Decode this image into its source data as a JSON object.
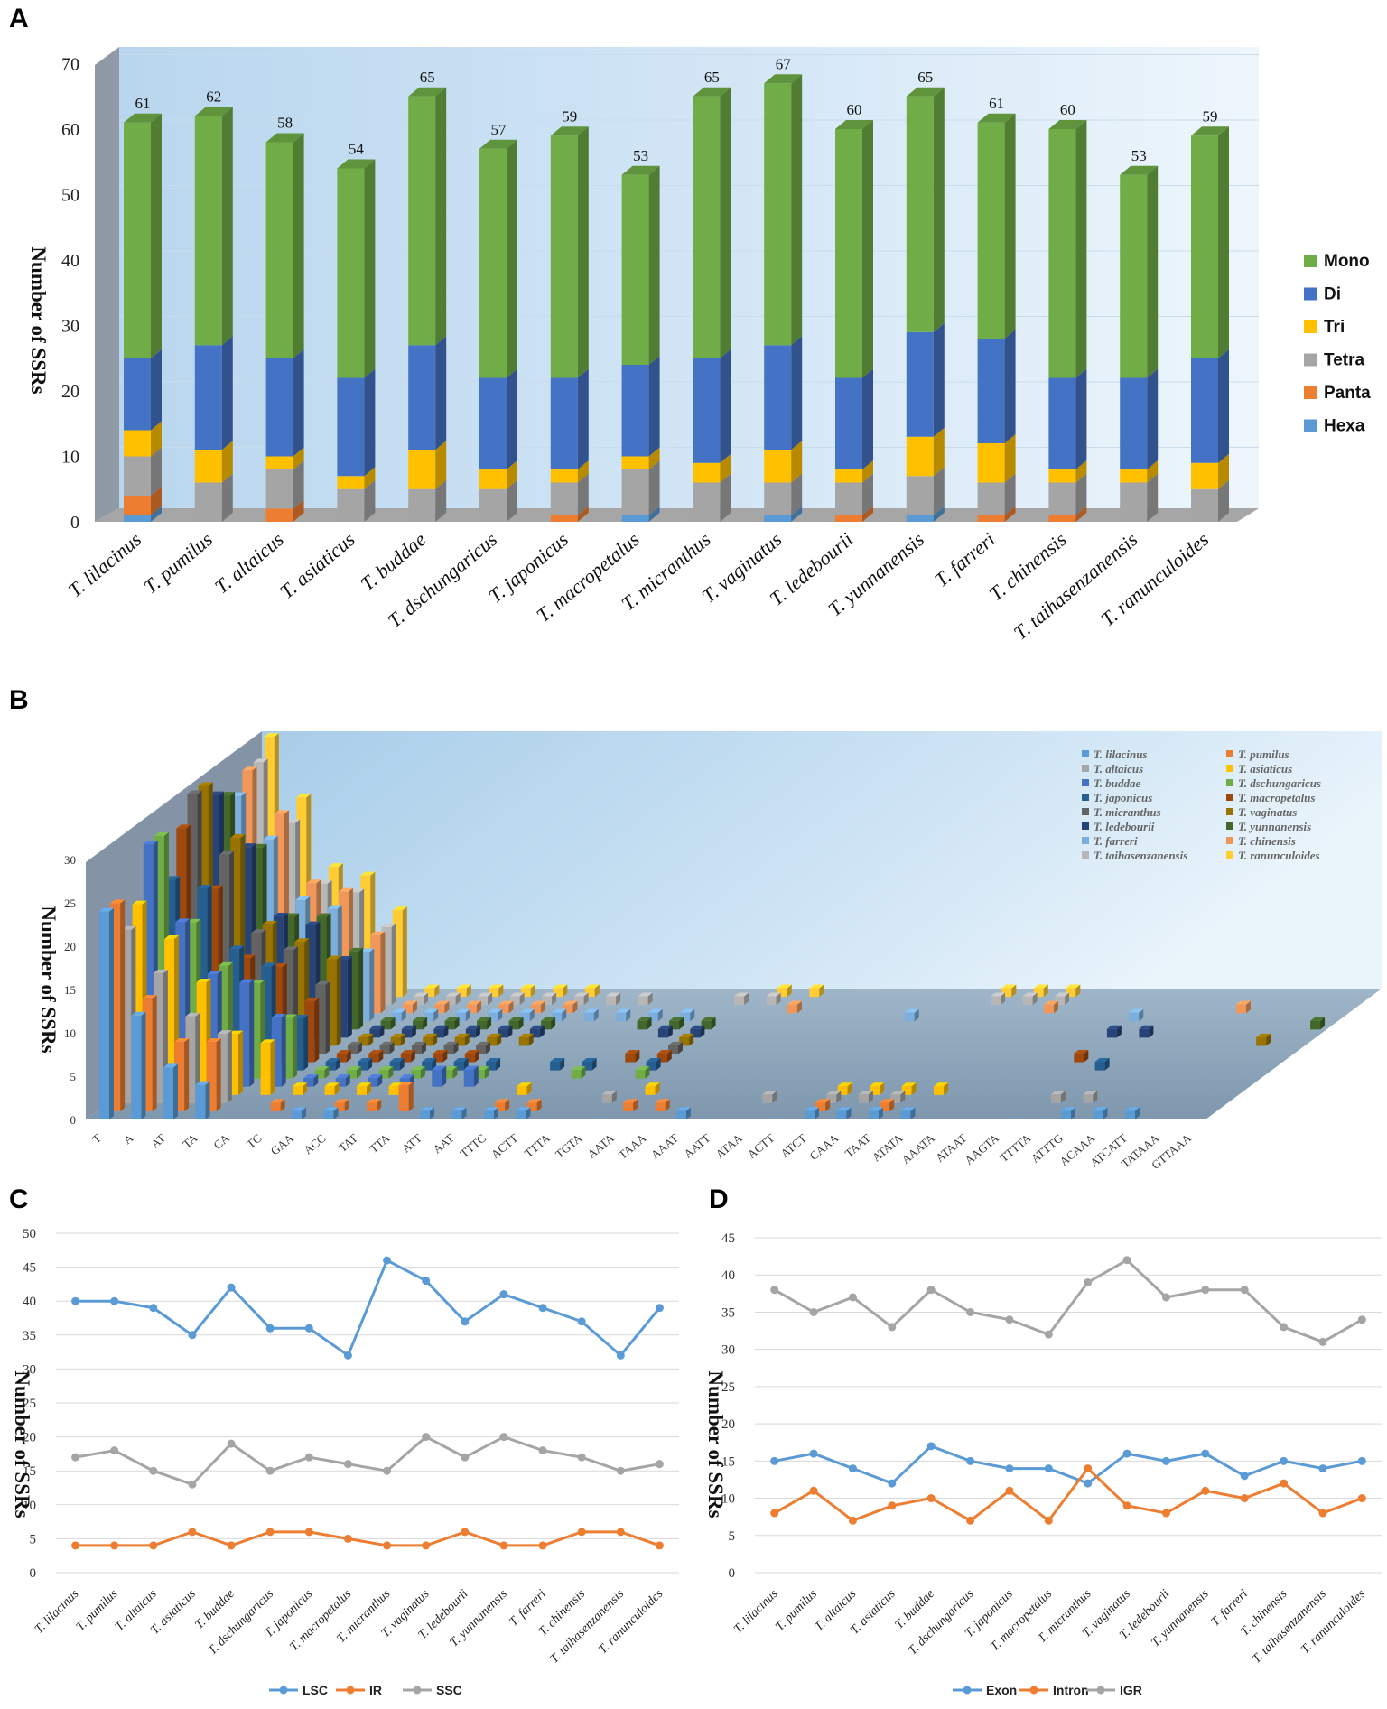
{
  "panels": {
    "a": "A",
    "b": "B",
    "c": "C",
    "d": "D"
  },
  "species": [
    "T. lilacinus",
    "T. pumilus",
    "T. altaicus",
    "T. asiaticus",
    "T. buddae",
    "T. dschungaricus",
    "T. japonicus",
    "T. macropetalus",
    "T. micranthus",
    "T. vaginatus",
    "T. ledebourii",
    "T. yunnanensis",
    "T. farreri",
    "T. chinensis",
    "T. taihasenzanensis",
    "T. ranunculoides"
  ],
  "colors": {
    "mono": "#70AD47",
    "di": "#4472C4",
    "tri": "#FFC000",
    "tetra": "#A5A5A5",
    "panta": "#ED7D31",
    "hexa": "#5B9BD5",
    "lsc": "#5B9BD5",
    "ir": "#ED7D31",
    "ssc": "#A5A5A5"
  },
  "chart_data": [
    {
      "id": "A",
      "type": "bar",
      "stacked": true,
      "ylabel": "Number of SSRs",
      "ylim": [
        0,
        70
      ],
      "yticks": [
        0,
        10,
        20,
        30,
        40,
        50,
        60,
        70
      ],
      "categories": [
        "T. lilacinus",
        "T. pumilus",
        "T. altaicus",
        "T. asiaticus",
        "T. buddae",
        "T. dschungaricus",
        "T. japonicus",
        "T. macropetalus",
        "T. micranthus",
        "T. vaginatus",
        "T. ledebourii",
        "T. yunnanensis",
        "T. farreri",
        "T. chinensis",
        "T. taihasenzanensis",
        "T. ranunculoides"
      ],
      "totals": [
        61,
        62,
        58,
        54,
        65,
        57,
        59,
        53,
        65,
        67,
        60,
        65,
        61,
        60,
        53,
        59
      ],
      "series": [
        {
          "name": "Hexa",
          "values": [
            1,
            0,
            0,
            0,
            0,
            0,
            0,
            1,
            0,
            1,
            0,
            1,
            0,
            0,
            0,
            0
          ]
        },
        {
          "name": "Panta",
          "values": [
            3,
            0,
            2,
            0,
            0,
            0,
            1,
            0,
            0,
            0,
            1,
            0,
            1,
            1,
            0,
            0
          ]
        },
        {
          "name": "Tetra",
          "values": [
            6,
            6,
            6,
            5,
            5,
            5,
            5,
            7,
            6,
            5,
            5,
            6,
            5,
            5,
            6,
            5
          ]
        },
        {
          "name": "Tri",
          "values": [
            4,
            5,
            2,
            2,
            6,
            3,
            2,
            2,
            3,
            5,
            2,
            6,
            6,
            2,
            2,
            4
          ]
        },
        {
          "name": "Di",
          "values": [
            11,
            16,
            15,
            15,
            16,
            14,
            14,
            14,
            16,
            16,
            14,
            16,
            16,
            14,
            14,
            16
          ]
        },
        {
          "name": "Mono",
          "values": [
            36,
            35,
            33,
            32,
            38,
            35,
            37,
            29,
            40,
            40,
            38,
            36,
            33,
            38,
            31,
            34
          ]
        }
      ],
      "legend": [
        "Mono",
        "Di",
        "Tri",
        "Tetra",
        "Panta",
        "Hexa"
      ],
      "legend_position": "right"
    },
    {
      "id": "B",
      "type": "bar",
      "three_d": true,
      "ylabel": "Number of SSRs",
      "ylim": [
        0,
        30
      ],
      "yticks": [
        0,
        5,
        10,
        15,
        20,
        25,
        30
      ],
      "categories": [
        "T",
        "A",
        "AT",
        "TA",
        "CA",
        "TC",
        "GAA",
        "ACC",
        "TAT",
        "TTA",
        "ATT",
        "AAT",
        "TTTC",
        "ACTT",
        "TTTA",
        "TGTA",
        "AATA",
        "TAAA",
        "AAAT",
        "AATT",
        "ATAA",
        "ACTT",
        "ATCT",
        "CAAA",
        "TAAT",
        "ATATA",
        "AAATA",
        "ATAAT",
        "AAGTA",
        "TTTTA",
        "ATTTG",
        "ACAAA",
        "ATCATT",
        "TATAAA",
        "GTTAAA"
      ],
      "series": [
        {
          "name": "T. lilacinus",
          "values": [
            24,
            12,
            6,
            4,
            0,
            0,
            1,
            1,
            0,
            0,
            1,
            1,
            1,
            1,
            0,
            0,
            0,
            0,
            1,
            0,
            0,
            0,
            1,
            1,
            1,
            1,
            0,
            0,
            0,
            0,
            1,
            1,
            1,
            0,
            0
          ]
        },
        {
          "name": "T. pumilus",
          "values": [
            24,
            13,
            8,
            8,
            0,
            1,
            0,
            1,
            1,
            3,
            0,
            0,
            1,
            1,
            0,
            0,
            1,
            1,
            0,
            0,
            0,
            0,
            1,
            0,
            1,
            0,
            0,
            0,
            0,
            0,
            0,
            0,
            0,
            0,
            0
          ]
        },
        {
          "name": "T. altaicus",
          "values": [
            20,
            15,
            10,
            8,
            0,
            0,
            0,
            0,
            0,
            0,
            0,
            0,
            0,
            0,
            0,
            1,
            0,
            0,
            0,
            0,
            1,
            0,
            1,
            1,
            1,
            0,
            0,
            0,
            0,
            1,
            1,
            0,
            0,
            0,
            0
          ]
        },
        {
          "name": "T. asiaticus",
          "values": [
            22,
            18,
            13,
            7,
            6,
            1,
            1,
            1,
            1,
            0,
            0,
            0,
            1,
            0,
            0,
            0,
            1,
            0,
            0,
            0,
            0,
            0,
            1,
            1,
            1,
            1,
            0,
            0,
            0,
            0,
            0,
            0,
            0,
            0,
            0
          ]
        },
        {
          "name": "T. buddae",
          "values": [
            28,
            19,
            13,
            12,
            8,
            1,
            1,
            1,
            1,
            2,
            2,
            0,
            0,
            0,
            0,
            0,
            0,
            0,
            0,
            0,
            0,
            0,
            0,
            0,
            0,
            0,
            0,
            0,
            0,
            0,
            0,
            0,
            0,
            0,
            0
          ]
        },
        {
          "name": "T. dschungaricus",
          "values": [
            28,
            18,
            13,
            11,
            7,
            1,
            1,
            1,
            1,
            1,
            1,
            0,
            0,
            1,
            0,
            1,
            0,
            0,
            0,
            0,
            0,
            0,
            0,
            0,
            0,
            0,
            0,
            0,
            0,
            0,
            0,
            0,
            0,
            0,
            0
          ]
        },
        {
          "name": "T. japonicus",
          "values": [
            22,
            21,
            14,
            12,
            6,
            1,
            1,
            1,
            1,
            1,
            1,
            0,
            1,
            1,
            0,
            1,
            0,
            0,
            0,
            0,
            0,
            0,
            0,
            0,
            0,
            0,
            0,
            0,
            0,
            1,
            0,
            0,
            0,
            0,
            0
          ]
        },
        {
          "name": "T. macropetalus",
          "values": [
            27,
            20,
            12,
            11,
            7,
            1,
            1,
            1,
            1,
            1,
            0,
            0,
            0,
            0,
            1,
            1,
            0,
            0,
            0,
            0,
            0,
            0,
            0,
            0,
            0,
            0,
            0,
            0,
            1,
            0,
            0,
            0,
            0,
            0,
            0
          ]
        },
        {
          "name": "T. micranthus",
          "values": [
            30,
            23,
            14,
            12,
            8,
            1,
            1,
            1,
            1,
            1,
            0,
            0,
            0,
            0,
            0,
            1,
            0,
            0,
            0,
            0,
            0,
            0,
            0,
            0,
            0,
            0,
            0,
            0,
            0,
            0,
            0,
            0,
            0,
            0,
            0
          ]
        },
        {
          "name": "T. vaginatus",
          "values": [
            30,
            24,
            14,
            12,
            10,
            1,
            1,
            1,
            1,
            1,
            1,
            0,
            0,
            0,
            0,
            1,
            0,
            0,
            0,
            0,
            0,
            0,
            0,
            0,
            0,
            0,
            0,
            0,
            0,
            0,
            0,
            0,
            0,
            1,
            0
          ]
        },
        {
          "name": "T. ledebourii",
          "values": [
            28,
            22,
            14,
            13,
            9,
            1,
            1,
            1,
            1,
            1,
            1,
            0,
            0,
            0,
            1,
            1,
            0,
            0,
            0,
            0,
            0,
            0,
            0,
            0,
            0,
            0,
            0,
            0,
            1,
            1,
            0,
            0,
            0,
            0,
            0
          ]
        },
        {
          "name": "T. yunnanensis",
          "values": [
            27,
            21,
            13,
            13,
            9,
            1,
            1,
            1,
            1,
            1,
            1,
            0,
            0,
            1,
            1,
            1,
            0,
            0,
            0,
            0,
            0,
            0,
            0,
            0,
            0,
            0,
            0,
            0,
            0,
            0,
            0,
            0,
            0,
            0,
            1
          ]
        },
        {
          "name": "T. farreri",
          "values": [
            26,
            21,
            14,
            13,
            8,
            1,
            1,
            1,
            1,
            1,
            1,
            1,
            1,
            1,
            1,
            0,
            0,
            0,
            0,
            0,
            0,
            1,
            0,
            0,
            0,
            0,
            0,
            0,
            1,
            0,
            0,
            0,
            0,
            0,
            0
          ]
        },
        {
          "name": "T. chinensis",
          "values": [
            28,
            23,
            15,
            14,
            9,
            1,
            1,
            1,
            1,
            1,
            1,
            0,
            0,
            0,
            0,
            0,
            0,
            1,
            0,
            0,
            0,
            0,
            0,
            0,
            0,
            1,
            0,
            0,
            0,
            0,
            0,
            1,
            0,
            0,
            0
          ]
        },
        {
          "name": "T. taihasenzanensis",
          "values": [
            28,
            21,
            14,
            13,
            9,
            1,
            1,
            1,
            1,
            1,
            1,
            1,
            1,
            0,
            0,
            1,
            1,
            0,
            0,
            0,
            0,
            0,
            0,
            1,
            1,
            1,
            0,
            0,
            0,
            0,
            0,
            0,
            0,
            0,
            0
          ]
        },
        {
          "name": "T. ranunculoides",
          "values": [
            30,
            23,
            15,
            14,
            10,
            1,
            1,
            1,
            1,
            1,
            1,
            0,
            0,
            0,
            0,
            0,
            1,
            1,
            0,
            0,
            0,
            0,
            0,
            1,
            1,
            1,
            0,
            0,
            0,
            0,
            0,
            0,
            0,
            0,
            0
          ]
        }
      ],
      "legend_position": "top-right"
    },
    {
      "id": "C",
      "type": "line",
      "ylabel": "Number of SSRs",
      "ylim": [
        0,
        50
      ],
      "yticks": [
        0,
        5,
        10,
        15,
        20,
        25,
        30,
        35,
        40,
        45,
        50
      ],
      "categories": [
        "T. lilacinus",
        "T. pumilus",
        "T. altaicus",
        "T. asiaticus",
        "T. buddae",
        "T. dschungaricus",
        "T. japonicus",
        "T. macropetalus",
        "T. micranthus",
        "T. vaginatus",
        "T. ledebourii",
        "T. yunnanensis",
        "T. farreri",
        "T. chinensis",
        "T. taihasenzanensis",
        "T. ranunculoides"
      ],
      "series": [
        {
          "name": "LSC",
          "values": [
            40,
            40,
            39,
            35,
            42,
            36,
            36,
            32,
            46,
            43,
            37,
            41,
            39,
            37,
            32,
            39
          ]
        },
        {
          "name": "IR",
          "values": [
            4,
            4,
            4,
            6,
            4,
            6,
            6,
            5,
            4,
            4,
            6,
            4,
            4,
            6,
            6,
            4
          ]
        },
        {
          "name": "SSC",
          "values": [
            17,
            18,
            15,
            13,
            19,
            15,
            17,
            16,
            15,
            20,
            17,
            20,
            18,
            17,
            15,
            16
          ]
        }
      ],
      "legend_position": "bottom"
    },
    {
      "id": "D",
      "type": "line",
      "ylabel": "Number of SSRs",
      "ylim": [
        0,
        45
      ],
      "yticks": [
        0,
        5,
        10,
        15,
        20,
        25,
        30,
        35,
        40,
        45
      ],
      "categories": [
        "T. lilacinus",
        "T. pumilus",
        "T. altaicus",
        "T. asiaticus",
        "T. buddae",
        "T. dschungaricus",
        "T. japonicus",
        "T. macropetalus",
        "T. micranthus",
        "T. vaginatus",
        "T. ledebourii",
        "T. yunnanensis",
        "T. farreri",
        "T. chinensis",
        "T. taihasenzanensis",
        "T. ranunculoides"
      ],
      "series": [
        {
          "name": "Exon",
          "values": [
            15,
            16,
            14,
            12,
            17,
            15,
            14,
            14,
            12,
            16,
            15,
            16,
            13,
            15,
            14,
            15
          ]
        },
        {
          "name": "Intron",
          "values": [
            8,
            11,
            7,
            9,
            10,
            7,
            11,
            7,
            14,
            9,
            8,
            11,
            10,
            12,
            8,
            10
          ]
        },
        {
          "name": "IGR",
          "values": [
            38,
            35,
            37,
            33,
            38,
            35,
            34,
            32,
            39,
            42,
            37,
            38,
            38,
            33,
            31,
            34
          ]
        }
      ],
      "legend_position": "bottom"
    }
  ]
}
